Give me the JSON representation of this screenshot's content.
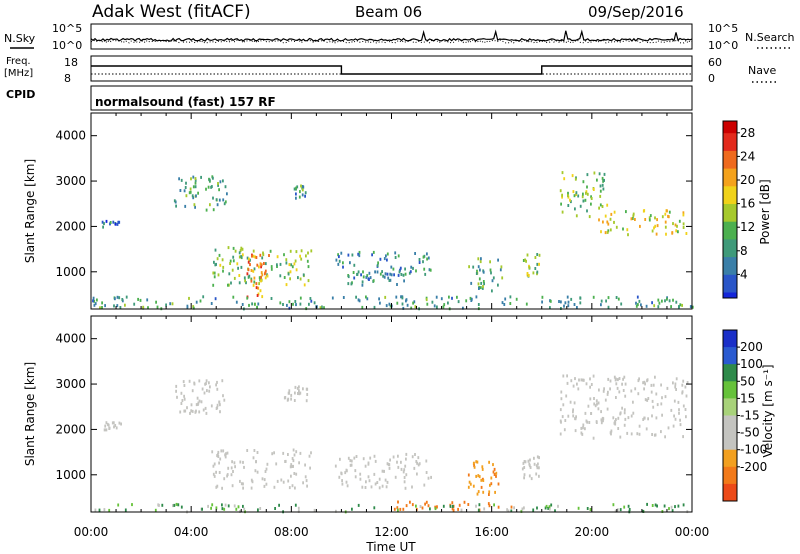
{
  "header": {
    "station": "Adak West (fitACF)",
    "beam": "Beam 06",
    "date": "09/Sep/2016"
  },
  "panels": {
    "nsky_label": "N.Sky",
    "nsearch_label": "N.Search",
    "nsky_ticks": [
      "10^5",
      "10^0"
    ],
    "nsearch_ticks": [
      "10^5",
      "10^0"
    ],
    "freq_label": "Freq.",
    "freq_unit": "[MHz]",
    "freq_ticks": [
      "18",
      "8"
    ],
    "nave_label": "Nave",
    "nave_ticks": [
      "60",
      "0"
    ],
    "cpid_label": "CPID",
    "cpid_text": "normalsound (fast) 157 RF"
  },
  "colors": {
    "power_scale": [
      "#1426d8",
      "#2a56c8",
      "#3a7fa8",
      "#3f9a7a",
      "#4cb04f",
      "#a6c92c",
      "#f0d21a",
      "#f4a21c",
      "#ef6a1e",
      "#e32a1c",
      "#cc0000"
    ],
    "velocity_scale": [
      "#1a2fc8",
      "#2a5ad0",
      "#2e8a4a",
      "#66c23a",
      "#a8d27a",
      "#c4c4c0",
      "#c4c4c0",
      "#f2a020",
      "#f27a1a",
      "#ec4a18",
      "#e02010"
    ],
    "ground_scatter": "#c4c4c0"
  },
  "chart_data": [
    {
      "type": "heatmap",
      "name": "Power",
      "x_ticks": [
        "00:00",
        "04:00",
        "08:00",
        "12:00",
        "16:00",
        "20:00",
        "00:00"
      ],
      "xlim_hours": [
        0,
        24
      ],
      "ylim_km": [
        180,
        4500
      ],
      "ylabel": "Slant Range [km]",
      "y_ticks": [
        1000,
        2000,
        3000,
        4000
      ],
      "colorbar_label": "Power [dB]",
      "colorbar_ticks": [
        4,
        8,
        12,
        16,
        20,
        24,
        28
      ],
      "colorbar_range": [
        0,
        30
      ],
      "regions": [
        {
          "t": [
            3.3,
            5.4
          ],
          "r": [
            2350,
            3100
          ],
          "v": 10
        },
        {
          "t": [
            7.7,
            8.6
          ],
          "r": [
            2600,
            2950
          ],
          "v": 9
        },
        {
          "t": [
            0.4,
            1.2
          ],
          "r": [
            1980,
            2150
          ],
          "v": 6
        },
        {
          "t": [
            4.8,
            8.8
          ],
          "r": [
            700,
            1550
          ],
          "v": 13
        },
        {
          "t": [
            6.2,
            7.1
          ],
          "r": [
            400,
            1400
          ],
          "v": 22
        },
        {
          "t": [
            9.7,
            13.6
          ],
          "r": [
            900,
            1450
          ],
          "v": 8
        },
        {
          "t": [
            10.2,
            12.5
          ],
          "r": [
            700,
            1000
          ],
          "v": 7
        },
        {
          "t": [
            15.0,
            16.4
          ],
          "r": [
            550,
            1300
          ],
          "v": 11
        },
        {
          "t": [
            17.2,
            17.9
          ],
          "r": [
            900,
            1400
          ],
          "v": 14
        },
        {
          "t": [
            18.7,
            20.6
          ],
          "r": [
            2200,
            3200
          ],
          "v": 13
        },
        {
          "t": [
            20.2,
            23.8
          ],
          "r": [
            1800,
            2350
          ],
          "v": 17
        },
        {
          "t": [
            0.0,
            24.0
          ],
          "r": [
            180,
            450
          ],
          "v": 9
        }
      ]
    },
    {
      "type": "heatmap",
      "name": "Velocity",
      "x_ticks": [
        "00:00",
        "04:00",
        "08:00",
        "12:00",
        "16:00",
        "20:00",
        "00:00"
      ],
      "xlim_hours": [
        0,
        24
      ],
      "ylim_km": [
        180,
        4500
      ],
      "xlabel": "Time UT",
      "ylabel": "Slant Range [km]",
      "y_ticks": [
        1000,
        2000,
        3000,
        4000
      ],
      "colorbar_label": "Velocity [m s⁻¹]",
      "colorbar_ticks": [
        "200",
        "100",
        "50",
        "15",
        "-15",
        "-50",
        "-100",
        "-200"
      ],
      "regions": [
        {
          "t": [
            3.3,
            5.4
          ],
          "r": [
            2350,
            3100
          ],
          "v": 0
        },
        {
          "t": [
            7.7,
            8.6
          ],
          "r": [
            2600,
            2950
          ],
          "v": 0
        },
        {
          "t": [
            0.4,
            1.2
          ],
          "r": [
            1980,
            2150
          ],
          "v": 0
        },
        {
          "t": [
            4.8,
            8.8
          ],
          "r": [
            700,
            1550
          ],
          "v": 0
        },
        {
          "t": [
            9.7,
            13.6
          ],
          "r": [
            700,
            1450
          ],
          "v": 0
        },
        {
          "t": [
            15.0,
            16.4
          ],
          "r": [
            550,
            1300
          ],
          "v": -60
        },
        {
          "t": [
            17.2,
            17.9
          ],
          "r": [
            900,
            1400
          ],
          "v": 0
        },
        {
          "t": [
            18.7,
            23.8
          ],
          "r": [
            1800,
            3200
          ],
          "v": 0
        },
        {
          "t": [
            12.0,
            17.0
          ],
          "r": [
            220,
            400
          ],
          "v": -120
        },
        {
          "t": [
            0.0,
            24.0
          ],
          "r": [
            180,
            350
          ],
          "v": 30
        }
      ]
    }
  ]
}
